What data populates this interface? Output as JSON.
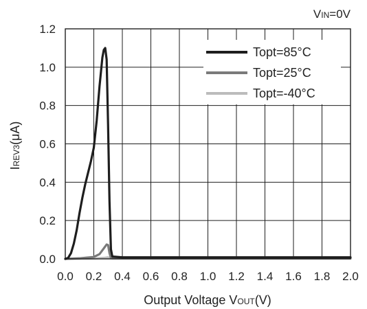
{
  "chart_data": {
    "type": "line",
    "condition_main": "V",
    "condition_sub": "IN",
    "condition_rest": "=0V",
    "xlabel_main": "Output Voltage V",
    "xlabel_sub": "OUT",
    "xlabel_rest": "(V)",
    "ylabel_main": "I",
    "ylabel_sub": "REV3",
    "ylabel_rest": "(μA)",
    "xlim": [
      0.0,
      2.0
    ],
    "ylim": [
      0.0,
      1.2
    ],
    "x_ticks": [
      "0.0",
      "0.2",
      "0.4",
      "0.6",
      "0.8",
      "1.0",
      "1.2",
      "1.4",
      "1.6",
      "1.8",
      "2.0"
    ],
    "y_ticks": [
      "0.0",
      "0.2",
      "0.4",
      "0.6",
      "0.8",
      "1.0",
      "1.2"
    ],
    "grid": true,
    "legend_position": "top-right",
    "series": [
      {
        "name": "Topt=85°C",
        "color": "#1e1e1e",
        "points": [
          [
            0.0,
            0.0
          ],
          [
            0.02,
            0.005
          ],
          [
            0.04,
            0.03
          ],
          [
            0.06,
            0.08
          ],
          [
            0.08,
            0.15
          ],
          [
            0.1,
            0.24
          ],
          [
            0.12,
            0.32
          ],
          [
            0.14,
            0.39
          ],
          [
            0.16,
            0.45
          ],
          [
            0.18,
            0.51
          ],
          [
            0.2,
            0.58
          ],
          [
            0.22,
            0.72
          ],
          [
            0.24,
            0.9
          ],
          [
            0.26,
            1.05
          ],
          [
            0.27,
            1.09
          ],
          [
            0.28,
            1.1
          ],
          [
            0.29,
            1.04
          ],
          [
            0.3,
            0.7
          ],
          [
            0.31,
            0.3
          ],
          [
            0.32,
            0.05
          ],
          [
            0.33,
            0.012
          ],
          [
            0.4,
            0.008
          ],
          [
            1.0,
            0.008
          ],
          [
            2.0,
            0.008
          ]
        ]
      },
      {
        "name": "Topt=25°C",
        "color": "#7a7a7a",
        "points": [
          [
            0.0,
            0.0
          ],
          [
            0.1,
            0.003
          ],
          [
            0.2,
            0.01
          ],
          [
            0.24,
            0.025
          ],
          [
            0.27,
            0.055
          ],
          [
            0.29,
            0.075
          ],
          [
            0.3,
            0.072
          ],
          [
            0.31,
            0.03
          ],
          [
            0.32,
            0.005
          ],
          [
            0.33,
            0.003
          ],
          [
            2.0,
            0.003
          ]
        ]
      },
      {
        "name": "Topt=-40°C",
        "color": "#bcbcbc",
        "points": [
          [
            0.0,
            0.0
          ],
          [
            0.2,
            0.002
          ],
          [
            0.28,
            0.006
          ],
          [
            0.3,
            0.008
          ],
          [
            0.32,
            0.003
          ],
          [
            2.0,
            0.002
          ]
        ]
      }
    ]
  }
}
